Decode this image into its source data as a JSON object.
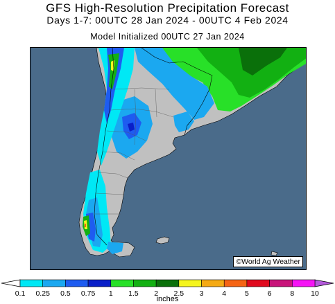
{
  "header": {
    "title": "GFS High-Resolution Precipitation Forecast",
    "subtitle": "Days 1-7: 00UTC 28 Jan 2024 - 00UTC 4 Feb 2024",
    "init_line": "Model Initialized 00UTC 27 Jan 2024"
  },
  "map": {
    "credit": "©World Ag Weather",
    "ocean_color": "#4a6b8a",
    "land_color": "#c0c0c0"
  },
  "legend": {
    "labels": [
      "0.1",
      "0.25",
      "0.5",
      "0.75",
      "1",
      "1.5",
      "2",
      "2.5",
      "3",
      "4",
      "5",
      "6",
      "8",
      "10"
    ],
    "colors": [
      "#00e8f5",
      "#1ba8f0",
      "#1e5cf0",
      "#0a1fc8",
      "#28e028",
      "#12b012",
      "#0a700a",
      "#f5f51e",
      "#f5aa14",
      "#f56414",
      "#e00a1e",
      "#c8147a",
      "#f514f5",
      "#b45adc"
    ],
    "units": "inches"
  }
}
